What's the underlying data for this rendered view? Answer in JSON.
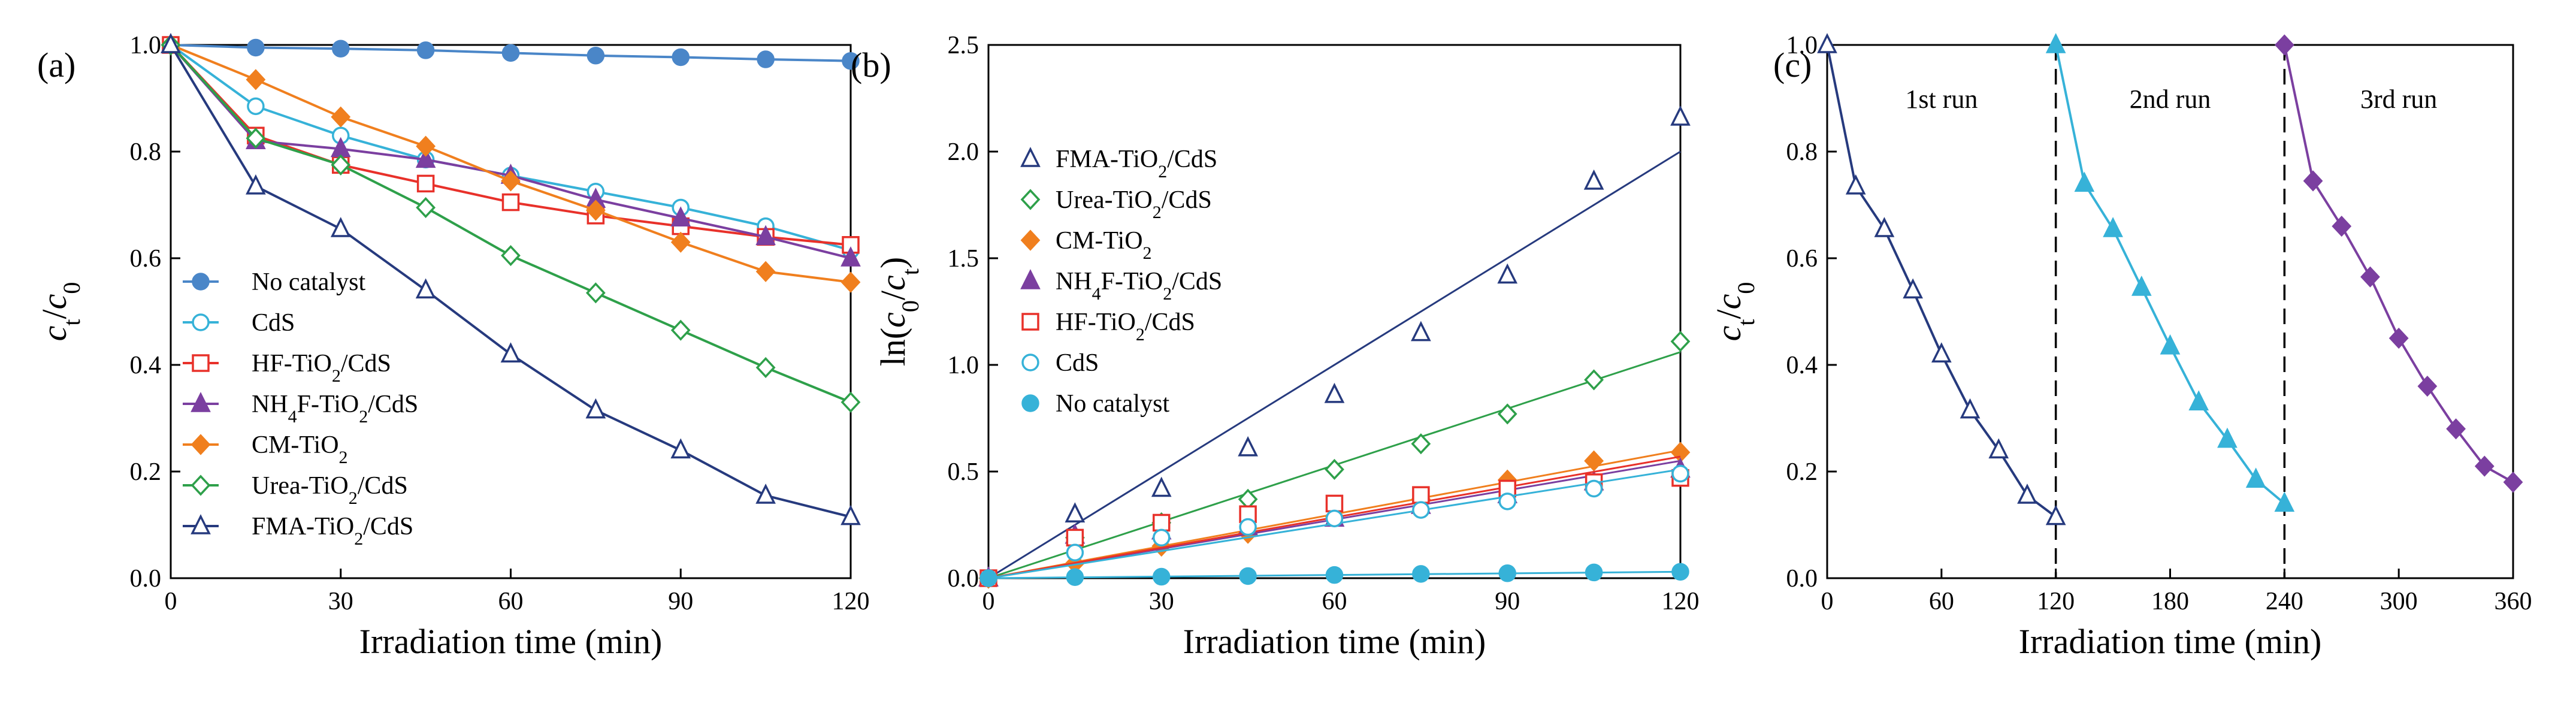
{
  "chart_data": [
    {
      "type": "line",
      "panel_label": "(a)",
      "xlabel": "Irradiation time (min)",
      "ylabel": {
        "base": "c",
        "sub_num": "t",
        "denom": "c",
        "sub_den": "0"
      },
      "xlim": [
        0,
        120
      ],
      "ylim": [
        0.0,
        1.0
      ],
      "xticks": [
        0,
        30,
        60,
        90,
        120
      ],
      "yticks": [
        0.0,
        0.2,
        0.4,
        0.6,
        0.8,
        1.0
      ],
      "x": [
        0,
        15,
        30,
        45,
        60,
        75,
        90,
        105,
        120
      ],
      "legend_position": "left",
      "series": [
        {
          "name": "No catalyst",
          "label_parts": [
            {
              "t": "No catalyst"
            }
          ],
          "color": "#4a86c8",
          "marker": "circle-filled",
          "values": [
            1.0,
            0.995,
            0.993,
            0.99,
            0.985,
            0.98,
            0.977,
            0.973,
            0.97
          ]
        },
        {
          "name": "CdS",
          "label_parts": [
            {
              "t": "CdS"
            }
          ],
          "color": "#36b2d8",
          "marker": "circle-open",
          "values": [
            1.0,
            0.885,
            0.83,
            0.785,
            0.755,
            0.725,
            0.695,
            0.66,
            0.615
          ]
        },
        {
          "name": "HF-TiO2/CdS",
          "label_parts": [
            {
              "t": "HF-TiO"
            },
            {
              "t": "2",
              "sub": true
            },
            {
              "t": "/CdS"
            }
          ],
          "color": "#e8312a",
          "marker": "square-open",
          "values": [
            1.0,
            0.83,
            0.775,
            0.74,
            0.705,
            0.68,
            0.66,
            0.64,
            0.625
          ]
        },
        {
          "name": "NH4F-TiO2/CdS",
          "label_parts": [
            {
              "t": "NH"
            },
            {
              "t": "4",
              "sub": true
            },
            {
              "t": "F-TiO"
            },
            {
              "t": "2",
              "sub": true
            },
            {
              "t": "/CdS"
            }
          ],
          "color": "#7b3fa0",
          "marker": "triangle-filled",
          "values": [
            1.0,
            0.82,
            0.805,
            0.785,
            0.755,
            0.71,
            0.675,
            0.64,
            0.6
          ]
        },
        {
          "name": "CM-TiO2",
          "label_parts": [
            {
              "t": "CM-TiO"
            },
            {
              "t": "2",
              "sub": true
            }
          ],
          "color": "#f07f1e",
          "marker": "diamond-filled",
          "values": [
            1.0,
            0.935,
            0.865,
            0.81,
            0.745,
            0.69,
            0.63,
            0.575,
            0.555
          ]
        },
        {
          "name": "Urea-TiO2/CdS",
          "label_parts": [
            {
              "t": "Urea-TiO"
            },
            {
              "t": "2",
              "sub": true
            },
            {
              "t": "/CdS"
            }
          ],
          "color": "#2ea04a",
          "marker": "diamond-open",
          "values": [
            1.0,
            0.825,
            0.775,
            0.695,
            0.605,
            0.535,
            0.465,
            0.395,
            0.33
          ]
        },
        {
          "name": "FMA-TiO2/CdS",
          "label_parts": [
            {
              "t": "FMA-TiO"
            },
            {
              "t": "2",
              "sub": true
            },
            {
              "t": "/CdS"
            }
          ],
          "color": "#263a7e",
          "marker": "triangle-open",
          "values": [
            1.0,
            0.735,
            0.655,
            0.54,
            0.42,
            0.315,
            0.24,
            0.155,
            0.115
          ]
        }
      ]
    },
    {
      "type": "scatter",
      "panel_label": "(b)",
      "xlabel": "Irradiation time (min)",
      "ylabel": {
        "pre": "ln(",
        "num": "c",
        "num_sub": "0",
        "slash": "/",
        "den": "c",
        "den_sub": "t",
        "post": ")"
      },
      "xlim": [
        0,
        120
      ],
      "ylim": [
        0.0,
        2.5
      ],
      "xticks": [
        0,
        30,
        60,
        90,
        120
      ],
      "yticks": [
        0.0,
        0.5,
        1.0,
        1.5,
        2.0,
        2.5
      ],
      "x": [
        0,
        15,
        30,
        45,
        60,
        75,
        90,
        105,
        120
      ],
      "fit": "linear through origin",
      "legend_position": "top-left",
      "series": [
        {
          "name": "FMA-TiO2/CdS",
          "label_parts": [
            {
              "t": "FMA-TiO"
            },
            {
              "t": "2",
              "sub": true
            },
            {
              "t": "/CdS"
            }
          ],
          "color": "#263a7e",
          "marker": "triangle-open",
          "values": [
            0.0,
            0.3,
            0.42,
            0.61,
            0.86,
            1.15,
            1.42,
            1.86,
            2.16
          ],
          "fit_end": 2.0
        },
        {
          "name": "Urea-TiO2/CdS",
          "label_parts": [
            {
              "t": "Urea-TiO"
            },
            {
              "t": "2",
              "sub": true
            },
            {
              "t": "/CdS"
            }
          ],
          "color": "#2ea04a",
          "marker": "diamond-open",
          "values": [
            0.0,
            0.19,
            0.26,
            0.37,
            0.51,
            0.63,
            0.77,
            0.93,
            1.11
          ],
          "fit_end": 1.06
        },
        {
          "name": "CM-TiO2",
          "label_parts": [
            {
              "t": "CM-TiO"
            },
            {
              "t": "2",
              "sub": true
            }
          ],
          "color": "#f07f1e",
          "marker": "diamond-filled",
          "values": [
            0.0,
            0.07,
            0.15,
            0.21,
            0.29,
            0.37,
            0.46,
            0.55,
            0.59
          ],
          "fit_end": 0.6
        },
        {
          "name": "NH4F-TiO2/CdS",
          "label_parts": [
            {
              "t": "NH"
            },
            {
              "t": "4",
              "sub": true
            },
            {
              "t": "F-TiO"
            },
            {
              "t": "2",
              "sub": true
            },
            {
              "t": "/CdS"
            }
          ],
          "color": "#7b3fa0",
          "marker": "triangle-filled",
          "values": [
            0.0,
            0.2,
            0.22,
            0.24,
            0.28,
            0.34,
            0.39,
            0.45,
            0.51
          ],
          "fit_end": 0.55
        },
        {
          "name": "HF-TiO2/CdS",
          "label_parts": [
            {
              "t": "HF-TiO"
            },
            {
              "t": "2",
              "sub": true
            },
            {
              "t": "/CdS"
            }
          ],
          "color": "#e8312a",
          "marker": "square-open",
          "values": [
            0.0,
            0.19,
            0.26,
            0.3,
            0.35,
            0.39,
            0.42,
            0.45,
            0.47
          ],
          "fit_end": 0.57
        },
        {
          "name": "CdS",
          "label_parts": [
            {
              "t": "CdS"
            }
          ],
          "color": "#36b2d8",
          "marker": "circle-open",
          "values": [
            0.0,
            0.12,
            0.19,
            0.24,
            0.28,
            0.32,
            0.36,
            0.42,
            0.49
          ],
          "fit_end": 0.51
        },
        {
          "name": "No catalyst",
          "label_parts": [
            {
              "t": "No catalyst"
            }
          ],
          "color": "#36b2d8",
          "marker": "circle-filled",
          "values": [
            0.0,
            0.005,
            0.007,
            0.01,
            0.015,
            0.02,
            0.023,
            0.027,
            0.03
          ],
          "fit_end": 0.03
        }
      ]
    },
    {
      "type": "line",
      "panel_label": "(c)",
      "xlabel": "Irradiation time (min)",
      "ylabel": {
        "base": "c",
        "sub_num": "t",
        "denom": "c",
        "sub_den": "0"
      },
      "xlim": [
        0,
        360
      ],
      "ylim": [
        0.0,
        1.0
      ],
      "xticks": [
        0,
        60,
        120,
        180,
        240,
        300,
        360
      ],
      "yticks": [
        0.0,
        0.2,
        0.4,
        0.6,
        0.8,
        1.0
      ],
      "run_separators": [
        120,
        240
      ],
      "run_labels": [
        {
          "text": "1st run",
          "x": 60,
          "y": 0.9
        },
        {
          "text": "2nd run",
          "x": 180,
          "y": 0.9
        },
        {
          "text": "3rd run",
          "x": 300,
          "y": 0.9
        }
      ],
      "series": [
        {
          "name": "1st run",
          "color": "#263a7e",
          "marker": "triangle-open",
          "x": [
            0,
            15,
            30,
            45,
            60,
            75,
            90,
            105,
            120
          ],
          "values": [
            1.0,
            0.735,
            0.655,
            0.54,
            0.42,
            0.315,
            0.24,
            0.155,
            0.115
          ]
        },
        {
          "name": "2nd run",
          "color": "#36b2d8",
          "marker": "triangle-filled",
          "x": [
            120,
            135,
            150,
            165,
            180,
            195,
            210,
            225,
            240
          ],
          "values": [
            1.0,
            0.74,
            0.655,
            0.545,
            0.435,
            0.33,
            0.26,
            0.185,
            0.14
          ]
        },
        {
          "name": "3rd run",
          "color": "#7b3fa0",
          "marker": "diamond-filled",
          "x": [
            240,
            255,
            270,
            285,
            300,
            315,
            330,
            345,
            360
          ],
          "values": [
            1.0,
            0.745,
            0.66,
            0.565,
            0.45,
            0.36,
            0.28,
            0.21,
            0.18
          ]
        }
      ]
    }
  ]
}
